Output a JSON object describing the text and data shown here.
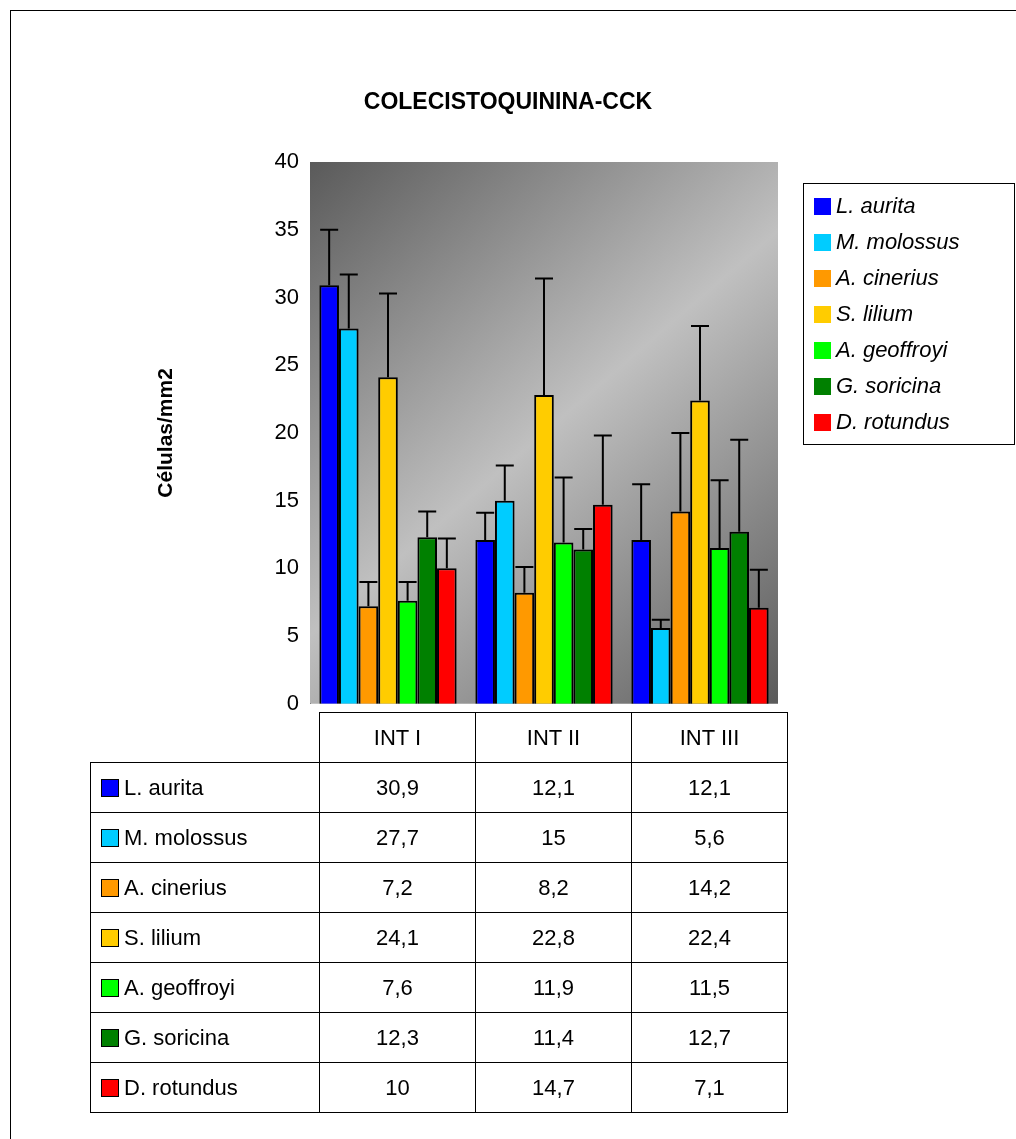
{
  "chart_data": {
    "type": "bar",
    "title": "COLECISTOQUININA-CCK",
    "ylabel": "Células/mm2",
    "categories": [
      "INT I",
      "INT II",
      "INT III"
    ],
    "ylim": [
      0,
      40
    ],
    "yticks": [
      0,
      5,
      10,
      15,
      20,
      25,
      30,
      35,
      40
    ],
    "grid": false,
    "legend": "right",
    "series": [
      {
        "name": "L. aurita",
        "color": "#0000ff",
        "values": [
          30.9,
          12.1,
          12.1
        ],
        "value_labels": [
          "30,9",
          "12,1",
          "12,1"
        ],
        "errors": [
          [
            30.9,
            35.0
          ],
          [
            12.1,
            14.1
          ],
          [
            12.1,
            16.2
          ]
        ]
      },
      {
        "name": "M. molossus",
        "color": "#00ccff",
        "values": [
          27.7,
          15,
          5.6
        ],
        "value_labels": [
          "27,7",
          "15",
          "5,6"
        ],
        "errors": [
          [
            27.7,
            31.7
          ],
          [
            15,
            17.6
          ],
          [
            5.6,
            6.2
          ]
        ]
      },
      {
        "name": "A. cinerius",
        "color": "#ff9900",
        "values": [
          7.2,
          8.2,
          14.2
        ],
        "value_labels": [
          "7,2",
          "8,2",
          "14,2"
        ],
        "errors": [
          [
            7.2,
            9.0
          ],
          [
            8.2,
            10.1
          ],
          [
            14.2,
            20.0
          ]
        ]
      },
      {
        "name": "S. lilium",
        "color": "#ffcc00",
        "values": [
          24.1,
          22.8,
          22.4
        ],
        "value_labels": [
          "24,1",
          "22,8",
          "22,4"
        ],
        "errors": [
          [
            24.1,
            30.3
          ],
          [
            22.8,
            31.4
          ],
          [
            22.4,
            27.9
          ]
        ]
      },
      {
        "name": "A. geoffroyi",
        "color": "#00ff00",
        "values": [
          7.6,
          11.9,
          11.5
        ],
        "value_labels": [
          "7,6",
          "11,9",
          "11,5"
        ],
        "errors": [
          [
            7.6,
            9.0
          ],
          [
            11.9,
            16.7
          ],
          [
            11.5,
            16.5
          ]
        ]
      },
      {
        "name": "G. soricina",
        "color": "#008000",
        "values": [
          12.3,
          11.4,
          12.7
        ],
        "value_labels": [
          "12,3",
          "11,4",
          "12,7"
        ],
        "errors": [
          [
            12.3,
            14.2
          ],
          [
            11.4,
            12.9
          ],
          [
            12.7,
            19.5
          ]
        ]
      },
      {
        "name": "D. rotundus",
        "color": "#ff0000",
        "values": [
          10,
          14.7,
          7.1
        ],
        "value_labels": [
          "10",
          "14,7",
          "7,1"
        ],
        "errors": [
          [
            10,
            12.2
          ],
          [
            14.7,
            19.8
          ],
          [
            7.1,
            9.9
          ]
        ]
      }
    ]
  }
}
